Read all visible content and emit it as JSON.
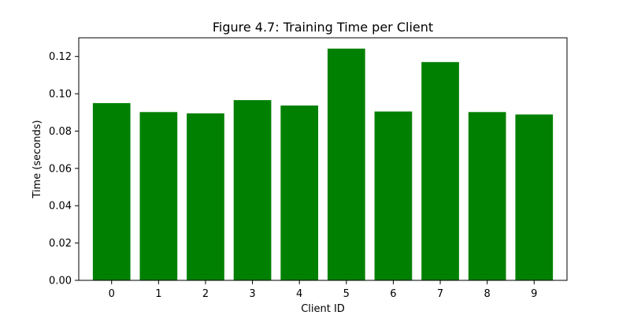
{
  "chart_data": {
    "type": "bar",
    "title": "Figure 4.7: Training Time per Client",
    "xlabel": "Client ID",
    "ylabel": "Time (seconds)",
    "categories": [
      "0",
      "1",
      "2",
      "3",
      "4",
      "5",
      "6",
      "7",
      "8",
      "9"
    ],
    "values": [
      0.095,
      0.0902,
      0.0895,
      0.0966,
      0.0937,
      0.1242,
      0.0905,
      0.117,
      0.0902,
      0.0889
    ],
    "ylim": [
      0,
      0.13
    ],
    "yticks": [
      "0.00",
      "0.02",
      "0.04",
      "0.06",
      "0.08",
      "0.10",
      "0.12"
    ],
    "ytick_values": [
      0,
      0.02,
      0.04,
      0.06,
      0.08,
      0.1,
      0.12
    ],
    "bar_color": "#008000",
    "grid": false,
    "legend": "none"
  }
}
